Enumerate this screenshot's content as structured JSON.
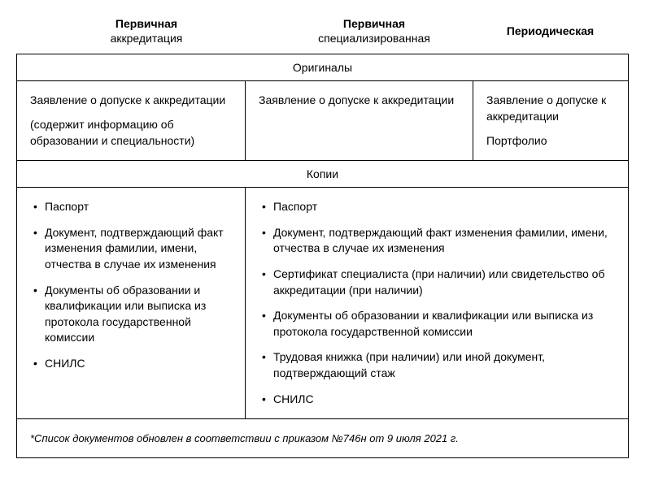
{
  "headers": {
    "col1_bold": "Первичная",
    "col1_normal": "аккредитация",
    "col2_bold": "Первичная",
    "col2_normal": "специализированная",
    "col3_bold": "Периодическая"
  },
  "section_originals_title": "Оригиналы",
  "section_copies_title": "Копии",
  "originals": {
    "col1_p1": "Заявление о допуске к аккредитации",
    "col1_p2": "(содержит информацию об образовании и специальности)",
    "col2_p1": "Заявление о допуске к аккредитации",
    "col3_p1": "Заявление о допуске к аккредитации",
    "col3_p2": "Портфолио"
  },
  "copies": {
    "col1_items": {
      "0": "Паспорт",
      "1": "Документ, подтверждающий факт изменения фамилии, имени, отчества в случае их изменения",
      "2": "Документы об образовании и квалификации или выписка из протокола государственной комиссии",
      "3": "СНИЛС"
    },
    "col2_items": {
      "0": "Паспорт",
      "1": "Документ, подтверждающий факт изменения фамилии, имени, отчества в случае их изменения",
      "2": "Сертификат специалиста (при наличии) или свидетельство об аккредитации (при наличии)",
      "3": "Документы об образовании и квалификации или выписка из протокола государственной комиссии",
      "4": "Трудовая книжка (при наличии) или иной документ, подтверждающий стаж",
      "5": "СНИЛС"
    }
  },
  "footnote": "*Список документов обновлен в соответствии с приказом №746н от 9 июля 2021 г."
}
